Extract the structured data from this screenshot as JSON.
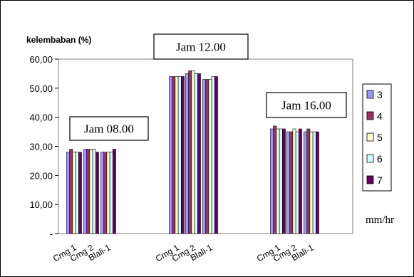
{
  "chart_data": {
    "type": "bar",
    "ylabel": "kelembaban (%)",
    "unit_label": "mm/hr",
    "ylim": [
      0,
      60
    ],
    "y_ticks": [
      "-",
      "10,00",
      "20,00",
      "30,00",
      "40,00",
      "50,00",
      "60,00"
    ],
    "grid": false,
    "legend_position": "right",
    "groups": [
      {
        "label": "Jam 08.00",
        "categories": [
          "Cmg 1",
          "Cmg 2",
          "Blali-1"
        ]
      },
      {
        "label": "Jam 12.00",
        "categories": [
          "Cmg 1",
          "Cmg 2",
          "Blali-1"
        ]
      },
      {
        "label": "Jam 16.00",
        "categories": [
          "Cmg 1",
          "Cmg 2",
          "Blali-1"
        ]
      }
    ],
    "categories": [
      "Cmg 1",
      "Cmg 2",
      "Blali-1",
      "Cmg 1",
      "Cmg 2",
      "Blali-1",
      "Cmg 1",
      "Cmg 2",
      "Blali-1"
    ],
    "series": [
      {
        "name": "3",
        "color": "#9999ff",
        "values": [
          28,
          29,
          28,
          54,
          55,
          53,
          36,
          35,
          35
        ]
      },
      {
        "name": "4",
        "color": "#993366",
        "values": [
          29,
          29,
          28,
          54,
          56,
          53,
          37,
          35,
          36
        ]
      },
      {
        "name": "5",
        "color": "#ffffcc",
        "values": [
          28,
          29,
          28,
          54,
          56,
          53,
          36,
          36,
          35
        ]
      },
      {
        "name": "6",
        "color": "#ccffff",
        "values": [
          28,
          29,
          28,
          54,
          55,
          54,
          36,
          35,
          35
        ]
      },
      {
        "name": "7",
        "color": "#660066",
        "values": [
          28,
          28,
          29,
          54,
          55,
          54,
          36,
          36,
          35
        ]
      }
    ]
  }
}
